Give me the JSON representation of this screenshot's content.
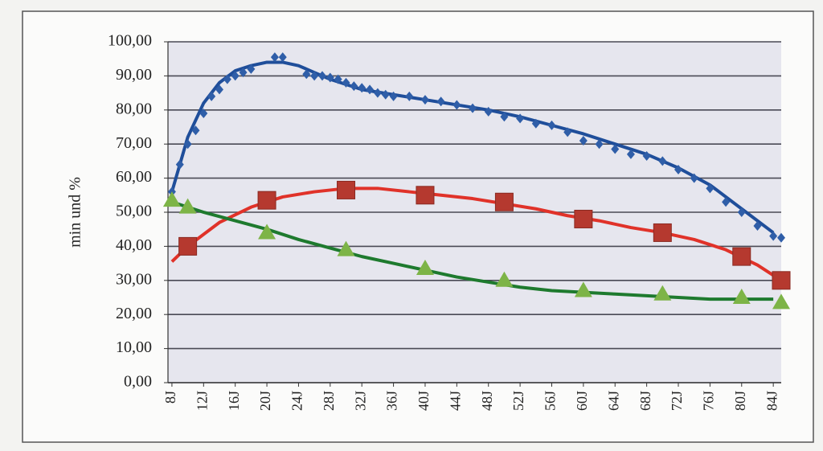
{
  "chart_data": {
    "type": "scatter",
    "y_label": "min und %",
    "xlim": [
      7.5,
      85
    ],
    "ylim": [
      0,
      100
    ],
    "grid": true,
    "plot_background": "#e6e6ee",
    "yticks": [
      {
        "value": 0,
        "label": "0,00"
      },
      {
        "value": 10,
        "label": "10,00"
      },
      {
        "value": 20,
        "label": "20,00"
      },
      {
        "value": 30,
        "label": "30,00"
      },
      {
        "value": 40,
        "label": "40,00"
      },
      {
        "value": 50,
        "label": "50,00"
      },
      {
        "value": 60,
        "label": "60,00"
      },
      {
        "value": 70,
        "label": "70,00"
      },
      {
        "value": 80,
        "label": "80,00"
      },
      {
        "value": 90,
        "label": "90,00"
      },
      {
        "value": 100,
        "label": "100,00"
      }
    ],
    "xticks": [
      {
        "value": 8,
        "label": "8J"
      },
      {
        "value": 12,
        "label": "12J"
      },
      {
        "value": 16,
        "label": "16J"
      },
      {
        "value": 20,
        "label": "20J"
      },
      {
        "value": 24,
        "label": "24J"
      },
      {
        "value": 28,
        "label": "28J"
      },
      {
        "value": 32,
        "label": "32J"
      },
      {
        "value": 36,
        "label": "36J"
      },
      {
        "value": 40,
        "label": "40J"
      },
      {
        "value": 44,
        "label": "44J"
      },
      {
        "value": 48,
        "label": "48J"
      },
      {
        "value": 52,
        "label": "52J"
      },
      {
        "value": 56,
        "label": "56J"
      },
      {
        "value": 60,
        "label": "60J"
      },
      {
        "value": 64,
        "label": "64J"
      },
      {
        "value": 68,
        "label": "68J"
      },
      {
        "value": 72,
        "label": "72J"
      },
      {
        "value": 76,
        "label": "76J"
      },
      {
        "value": 80,
        "label": "80J"
      },
      {
        "value": 84,
        "label": "84J"
      }
    ],
    "series": [
      {
        "color": "#2f5ea8",
        "marker": "diamond",
        "line": false,
        "x": [
          8,
          9,
          10,
          11,
          12,
          13,
          14,
          15,
          16,
          17,
          18,
          21,
          22,
          25,
          26,
          27,
          28,
          29,
          30,
          31,
          32,
          33,
          34,
          35,
          36,
          38,
          40,
          42,
          44,
          46,
          48,
          50,
          52,
          54,
          56,
          58,
          60,
          62,
          64,
          66,
          68,
          70,
          72,
          74,
          76,
          78,
          80,
          82,
          84,
          85
        ],
        "values": [
          56,
          64,
          70,
          74,
          79,
          84,
          86,
          89,
          90,
          91,
          92,
          95.5,
          95.5,
          90.5,
          90,
          90,
          89.5,
          89,
          88,
          87,
          86.5,
          86,
          85,
          84.5,
          84,
          84,
          83,
          82.5,
          81.5,
          80.5,
          79.5,
          78,
          77.5,
          76,
          75.5,
          73.5,
          71,
          70,
          68.5,
          67,
          66.5,
          65,
          62.5,
          60,
          57,
          53,
          50,
          46,
          43,
          42.5
        ]
      },
      {
        "color": "#1f4e9a",
        "marker": "none",
        "line": true,
        "x": [
          8,
          10,
          12,
          14,
          16,
          18,
          20,
          22,
          24,
          26,
          28,
          30,
          32,
          36,
          40,
          44,
          48,
          52,
          56,
          60,
          64,
          68,
          72,
          76,
          80,
          84
        ],
        "values": [
          56,
          72,
          82,
          88,
          91.5,
          93,
          94,
          94,
          93,
          91,
          89,
          87.5,
          86,
          84.5,
          83,
          81.5,
          80,
          78,
          75.5,
          73,
          70,
          67,
          63,
          58,
          51,
          44
        ]
      },
      {
        "color": "#b5392f",
        "marker": "square",
        "line": false,
        "x": [
          10,
          20,
          30,
          40,
          50,
          60,
          70,
          80,
          85
        ],
        "values": [
          40,
          53.5,
          56.5,
          55,
          53,
          48,
          44,
          37,
          30
        ]
      },
      {
        "color": "#e03229",
        "marker": "none",
        "line": true,
        "x": [
          8,
          10,
          14,
          18,
          22,
          26,
          30,
          34,
          38,
          42,
          46,
          50,
          54,
          58,
          62,
          66,
          70,
          74,
          78,
          82,
          85
        ],
        "values": [
          35.5,
          40,
          47,
          51.5,
          54.5,
          56,
          57,
          57,
          56,
          55,
          54,
          52.5,
          51,
          49,
          47.5,
          45.5,
          44,
          42,
          39,
          34.5,
          30
        ]
      },
      {
        "color": "#7db447",
        "marker": "triangle",
        "line": false,
        "x": [
          8,
          10,
          20,
          30,
          40,
          50,
          60,
          70,
          80,
          85
        ],
        "values": [
          53.5,
          51.5,
          44,
          39,
          33.5,
          30,
          27,
          26,
          25,
          23.5
        ]
      },
      {
        "color": "#1e7a2e",
        "marker": "none",
        "line": true,
        "x": [
          8,
          12,
          16,
          20,
          24,
          28,
          32,
          36,
          40,
          44,
          48,
          52,
          56,
          60,
          64,
          68,
          72,
          76,
          80,
          84
        ],
        "values": [
          53,
          50,
          47.5,
          45,
          42,
          39.5,
          37,
          35,
          33,
          31,
          29.5,
          28,
          27,
          26.5,
          26,
          25.5,
          25,
          24.5,
          24.5,
          24.5
        ]
      }
    ]
  }
}
